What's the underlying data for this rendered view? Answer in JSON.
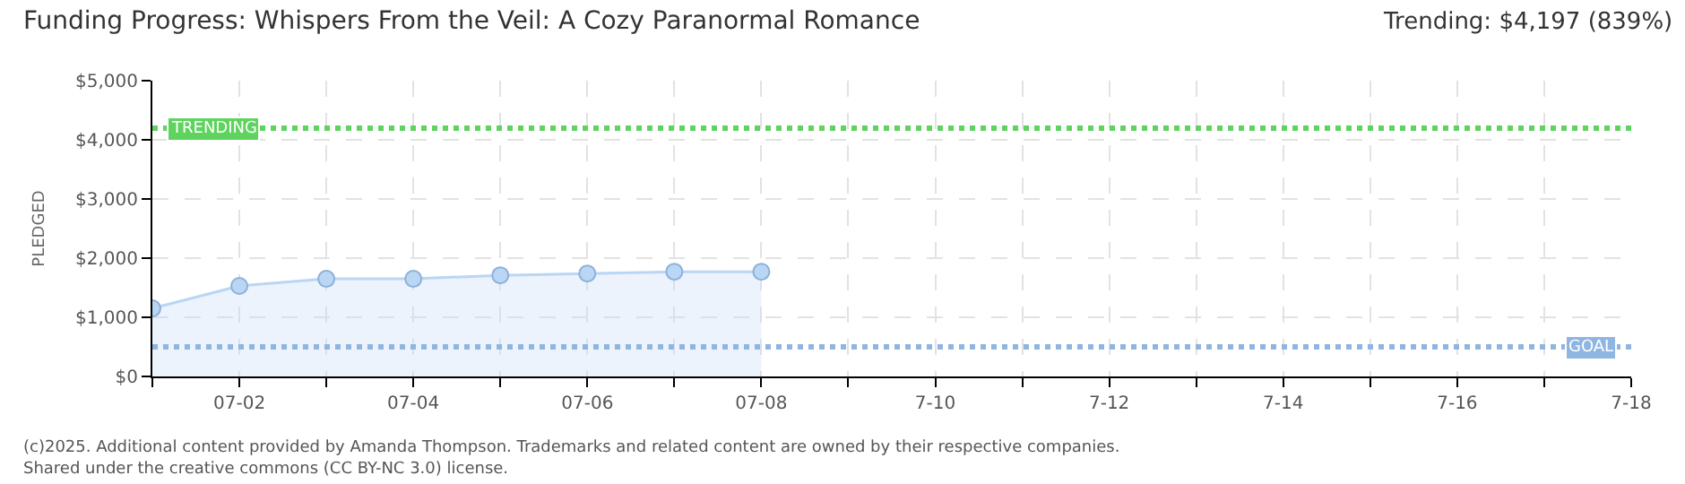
{
  "chart_data": {
    "type": "area",
    "title": "Funding Progress: Whispers From the Veil: A Cozy Paranormal Romance",
    "subtitle": "Trending: $4,197 (839%)",
    "ylabel": "PLEDGED",
    "x": [
      "2025-07-01",
      "2025-07-02",
      "2025-07-03",
      "2025-07-04",
      "2025-07-05",
      "2025-07-06",
      "2025-07-07",
      "2025-07-08"
    ],
    "series": [
      {
        "color": "#b9d6f5",
        "values": [
          1150,
          1530,
          1650,
          1650,
          1710,
          1740,
          1770,
          1770
        ]
      }
    ],
    "xlim": [
      "2025-07-01",
      "2025-07-18"
    ],
    "xticks": [
      {
        "value": "2025-07-01",
        "label": null
      },
      {
        "value": "2025-07-02",
        "label": "07-02"
      },
      {
        "value": "2025-07-03",
        "label": null
      },
      {
        "value": "2025-07-04",
        "label": "07-04"
      },
      {
        "value": "2025-07-05",
        "label": null
      },
      {
        "value": "2025-07-06",
        "label": "07-06"
      },
      {
        "value": "2025-07-07",
        "label": null
      },
      {
        "value": "2025-07-08",
        "label": "07-08"
      },
      {
        "value": "2025-07-09",
        "label": null
      },
      {
        "value": "2025-07-10",
        "label": "7-10"
      },
      {
        "value": "2025-07-11",
        "label": null
      },
      {
        "value": "2025-07-12",
        "label": "7-12"
      },
      {
        "value": "2025-07-13",
        "label": null
      },
      {
        "value": "2025-07-14",
        "label": "7-14"
      },
      {
        "value": "2025-07-15",
        "label": null
      },
      {
        "value": "2025-07-16",
        "label": "7-16"
      },
      {
        "value": "2025-07-17",
        "label": null
      },
      {
        "value": "2025-07-18",
        "label": "7-18"
      }
    ],
    "ylim": [
      0,
      5000
    ],
    "yticks": [
      {
        "value": 0,
        "label": "$0"
      },
      {
        "value": 1000,
        "label": "$1,000"
      },
      {
        "value": 2000,
        "label": "$2,000"
      },
      {
        "value": 3000,
        "label": "$3,000"
      },
      {
        "value": 4000,
        "label": "$4,000"
      },
      {
        "value": 5000,
        "label": "$5,000"
      }
    ],
    "ref_lines": [
      {
        "axis": "y",
        "value": 4197,
        "label": "TRENDING",
        "color": "#5ed35e",
        "line_style": "dotted"
      },
      {
        "axis": "y",
        "value": 500,
        "label": "GOAL",
        "color": "#8fb5e3",
        "line_style": "dotted"
      }
    ],
    "annotations": [
      "(c)2025. Additional content provided by Amanda Thompson. Trademarks and related content are owned by their respective companies.",
      "Shared under the creative commons (CC BY-NC 3.0) license."
    ],
    "grid": true,
    "marker": "circle",
    "line_style": "solid"
  }
}
